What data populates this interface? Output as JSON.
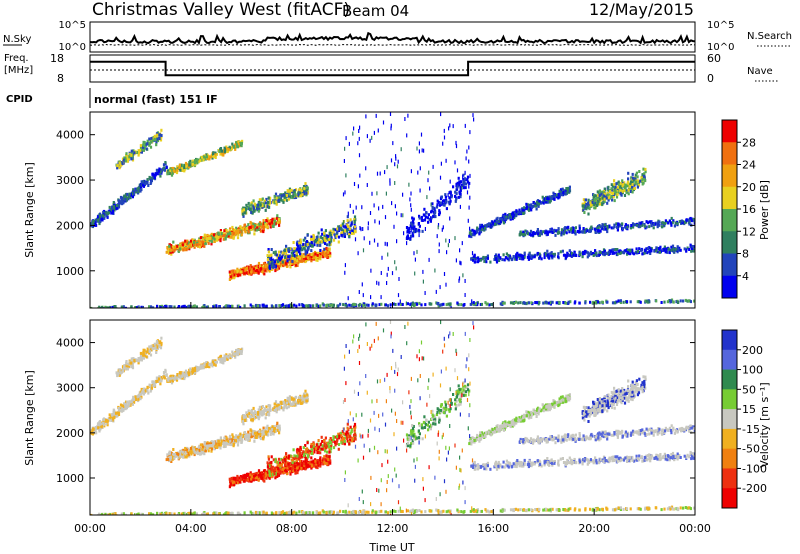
{
  "header": {
    "station_title": "Christmas Valley West (fitACF)",
    "beam_label": "Beam 04",
    "date": "12/May/2015"
  },
  "status_panels": {
    "nsky_label": "N.Sky",
    "nsearch_label": "N.Search",
    "freq_label_1": "Freq.",
    "freq_label_2": "[MHz]",
    "nave_label": "Nave",
    "cpid_label": "CPID",
    "cpid_value": "normal (fast) 151 IF",
    "noise_ticks": [
      "10^5",
      "10^0"
    ],
    "freq_ticks": [
      "18",
      "8"
    ],
    "nave_ticks": [
      "60",
      "0"
    ],
    "freq_series_hours": [
      0,
      3,
      3,
      15,
      15,
      24
    ],
    "freq_series_mhz": [
      15.5,
      15.5,
      10.5,
      10.5,
      15.5,
      15.5
    ]
  },
  "chart_data": [
    {
      "type": "heatmap",
      "name": "power-panel",
      "ylabel": "Slant Range [km]",
      "y_ticks": [
        "1000",
        "2000",
        "3000",
        "4000"
      ],
      "colorbar_label": "Power [dB]",
      "colorbar_ticks": [
        "4",
        "8",
        "12",
        "16",
        "20",
        "24",
        "28"
      ],
      "colorbar_colors": [
        "#0000ee",
        "#2244bb",
        "#2f7f5f",
        "#55a855",
        "#e8d020",
        "#f0a010",
        "#f07010",
        "#ee0000"
      ],
      "ylim_km": [
        180,
        4500
      ],
      "xlim_hours": [
        0,
        24
      ]
    },
    {
      "type": "heatmap",
      "name": "velocity-panel",
      "ylabel": "Slant Range [km]",
      "y_ticks": [
        "1000",
        "2000",
        "3000",
        "4000"
      ],
      "xlabel": "Time UT",
      "x_ticks": [
        "00:00",
        "04:00",
        "08:00",
        "12:00",
        "16:00",
        "20:00",
        "00:00"
      ],
      "colorbar_label": "Velocity [m s⁻¹]",
      "colorbar_ticks": [
        "200",
        "100",
        "50",
        "15",
        "-15",
        "-50",
        "-100",
        "-200"
      ],
      "colorbar_colors": [
        "#2233cc",
        "#5566dd",
        "#2f8a4f",
        "#77cc33",
        "#c8c8c0",
        "#f0b020",
        "#f08010",
        "#ee3010",
        "#ee0000"
      ],
      "ylim_km": [
        180,
        4500
      ],
      "xlim_hours": [
        0,
        24
      ]
    }
  ]
}
